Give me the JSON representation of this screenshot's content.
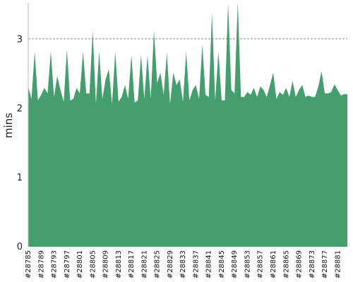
{
  "chart_data": {
    "type": "area",
    "title": "",
    "xlabel": "",
    "ylabel": "mins",
    "ylim": [
      0,
      3.5
    ],
    "y_ticks": [
      "0",
      "1",
      "2",
      "3"
    ],
    "grid": "horizontal dashed",
    "legend": "none",
    "color": "#459e6e",
    "x_tick_labels": [
      "#28785",
      "#28789",
      "#28793",
      "#28797",
      "#28801",
      "#28805",
      "#28809",
      "#28813",
      "#28817",
      "#28821",
      "#28825",
      "#28829",
      "#28833",
      "#28837",
      "#28841",
      "#28845",
      "#28849",
      "#28853",
      "#28857",
      "#28861",
      "#28865",
      "#28869",
      "#28873",
      "#28877",
      "#28881"
    ],
    "x_range": [
      28785,
      28884
    ],
    "x": [
      28785,
      28786,
      28787,
      28788,
      28789,
      28790,
      28791,
      28792,
      28793,
      28794,
      28795,
      28796,
      28797,
      28798,
      28799,
      28800,
      28801,
      28802,
      28803,
      28804,
      28805,
      28806,
      28807,
      28808,
      28809,
      28810,
      28811,
      28812,
      28813,
      28814,
      28815,
      28816,
      28817,
      28818,
      28819,
      28820,
      28821,
      28822,
      28823,
      28824,
      28825,
      28826,
      28827,
      28828,
      28829,
      28830,
      28831,
      28832,
      28833,
      28834,
      28835,
      28836,
      28837,
      28838,
      28839,
      28840,
      28841,
      28842,
      28843,
      28844,
      28845,
      28846,
      28847,
      28848,
      28849,
      28850,
      28851,
      28852,
      28853,
      28854,
      28855,
      28856,
      28857,
      28858,
      28859,
      28860,
      28861,
      28862,
      28863,
      28864,
      28865,
      28866,
      28867,
      28868,
      28869,
      28870,
      28871,
      28872,
      28873,
      28874,
      28875,
      28876,
      28877,
      28878,
      28879,
      28880,
      28881,
      28882,
      28883,
      28884
    ],
    "values": [
      2.3,
      2.12,
      2.8,
      2.1,
      2.18,
      2.28,
      2.2,
      2.8,
      2.15,
      2.45,
      2.25,
      2.08,
      2.83,
      2.1,
      2.12,
      2.28,
      2.2,
      2.8,
      2.2,
      2.2,
      3.1,
      2.05,
      2.8,
      2.12,
      2.4,
      2.55,
      2.05,
      2.8,
      2.08,
      2.15,
      2.32,
      2.12,
      2.75,
      2.07,
      2.1,
      2.75,
      2.12,
      2.75,
      2.12,
      3.1,
      2.35,
      2.5,
      2.18,
      2.78,
      2.05,
      2.5,
      2.32,
      2.4,
      2.08,
      2.8,
      2.1,
      2.25,
      2.32,
      2.12,
      2.9,
      2.18,
      2.15,
      3.35,
      2.1,
      2.8,
      2.1,
      2.1,
      3.5,
      2.25,
      2.2,
      3.55,
      2.15,
      2.15,
      2.22,
      2.18,
      2.28,
      2.15,
      2.3,
      2.25,
      2.15,
      2.32,
      2.5,
      2.12,
      2.22,
      2.18,
      2.28,
      2.15,
      2.38,
      2.15,
      2.25,
      2.32,
      2.15,
      2.17,
      2.15,
      2.15,
      2.3,
      2.52,
      2.2,
      2.2,
      2.22,
      2.33,
      2.25,
      2.17,
      2.19,
      2.19
    ]
  }
}
